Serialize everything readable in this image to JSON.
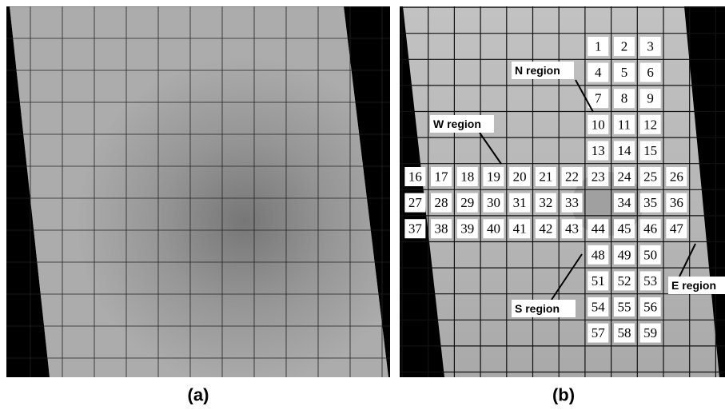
{
  "panels": [
    {
      "caption": "(a)"
    },
    {
      "caption": "(b)",
      "cell_numbers": [
        1,
        2,
        3,
        4,
        5,
        6,
        7,
        8,
        9,
        10,
        11,
        12,
        13,
        14,
        15,
        16,
        17,
        18,
        19,
        20,
        21,
        22,
        23,
        24,
        25,
        26,
        27,
        28,
        29,
        30,
        31,
        32,
        33,
        34,
        35,
        36,
        37,
        38,
        39,
        40,
        41,
        42,
        43,
        44,
        45,
        46,
        47,
        48,
        49,
        50,
        51,
        52,
        53,
        54,
        55,
        56,
        57,
        58,
        59
      ],
      "regions": [
        "N region",
        "W region",
        "S region",
        "E region"
      ]
    }
  ]
}
